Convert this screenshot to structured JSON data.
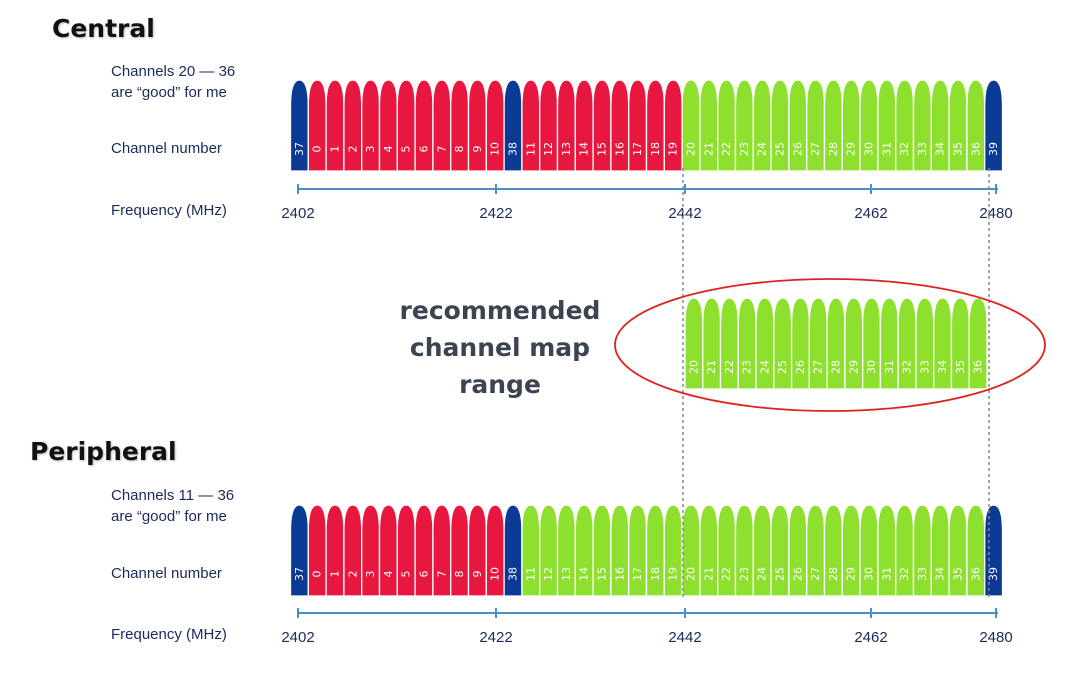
{
  "central": {
    "title": "Central",
    "good_line1": "Channels 20 — 36",
    "good_line2": "are “good” for me",
    "channel_label": "Channel number",
    "frequency_label": "Frequency (MHz)"
  },
  "peripheral": {
    "title": "Peripheral",
    "good_line1": "Channels 11 — 36",
    "good_line2": "are “good” for me",
    "channel_label": "Channel number",
    "frequency_label": "Frequency (MHz)"
  },
  "recommended": {
    "line1": "recommended",
    "line2": "channel map",
    "line3": "range"
  },
  "channel_order": [
    "37",
    "0",
    "1",
    "2",
    "3",
    "4",
    "5",
    "6",
    "7",
    "8",
    "9",
    "10",
    "38",
    "11",
    "12",
    "13",
    "14",
    "15",
    "16",
    "17",
    "18",
    "19",
    "20",
    "21",
    "22",
    "23",
    "24",
    "25",
    "26",
    "27",
    "28",
    "29",
    "30",
    "31",
    "32",
    "33",
    "34",
    "35",
    "36",
    "39"
  ],
  "advertising_channels": [
    "37",
    "38",
    "39"
  ],
  "central_good_channels": [
    "20",
    "21",
    "22",
    "23",
    "24",
    "25",
    "26",
    "27",
    "28",
    "29",
    "30",
    "31",
    "32",
    "33",
    "34",
    "35",
    "36"
  ],
  "peripheral_good_channels": [
    "11",
    "12",
    "13",
    "14",
    "15",
    "16",
    "17",
    "18",
    "19",
    "20",
    "21",
    "22",
    "23",
    "24",
    "25",
    "26",
    "27",
    "28",
    "29",
    "30",
    "31",
    "32",
    "33",
    "34",
    "35",
    "36"
  ],
  "recommended_channels": [
    "20",
    "21",
    "22",
    "23",
    "24",
    "25",
    "26",
    "27",
    "28",
    "29",
    "30",
    "31",
    "32",
    "33",
    "34",
    "35",
    "36"
  ],
  "frequency_ticks": [
    "2402",
    "2422",
    "2442",
    "2462",
    "2480"
  ],
  "colors": {
    "advertising": "#0a3a94",
    "bad": "#e8173f",
    "good": "#8ee02e",
    "axis": "#4a90c8",
    "ellipse": "#e02020",
    "guide": "#888888"
  }
}
